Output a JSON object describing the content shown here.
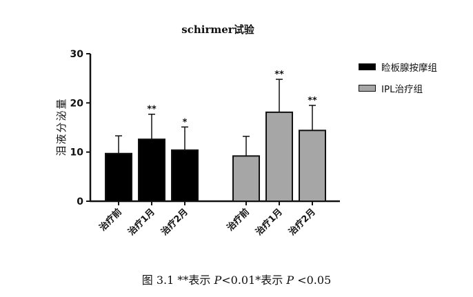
{
  "chart_data": {
    "type": "bar",
    "title": "schirmer试验",
    "ylabel": "泪液分泌量",
    "xlabel": "",
    "ylim": [
      0,
      30
    ],
    "yticks": [
      0,
      10,
      20,
      30
    ],
    "grid": false,
    "legend_position": "right",
    "groups": [
      {
        "name": "睑板腺按摩组",
        "color": "#000000",
        "categories": [
          "治疗前",
          "治疗1月",
          "治疗2月"
        ],
        "values": [
          9.7,
          12.6,
          10.4
        ],
        "errors": [
          3.6,
          5.1,
          4.7
        ],
        "significance": [
          "",
          "**",
          "*"
        ]
      },
      {
        "name": "IPL治疗组",
        "color": "#a6a6a6",
        "categories": [
          "治疗前",
          "治疗1月",
          "治疗2月"
        ],
        "values": [
          9.2,
          18.1,
          14.4
        ],
        "errors": [
          4.0,
          6.7,
          5.1
        ],
        "significance": [
          "",
          "**",
          "**"
        ]
      }
    ]
  },
  "caption": {
    "prefix": "图 3.1 **表示 ",
    "p1": "P",
    "mid": "<0.01*表示 ",
    "p2": "P",
    "suffix": " <0.05"
  }
}
